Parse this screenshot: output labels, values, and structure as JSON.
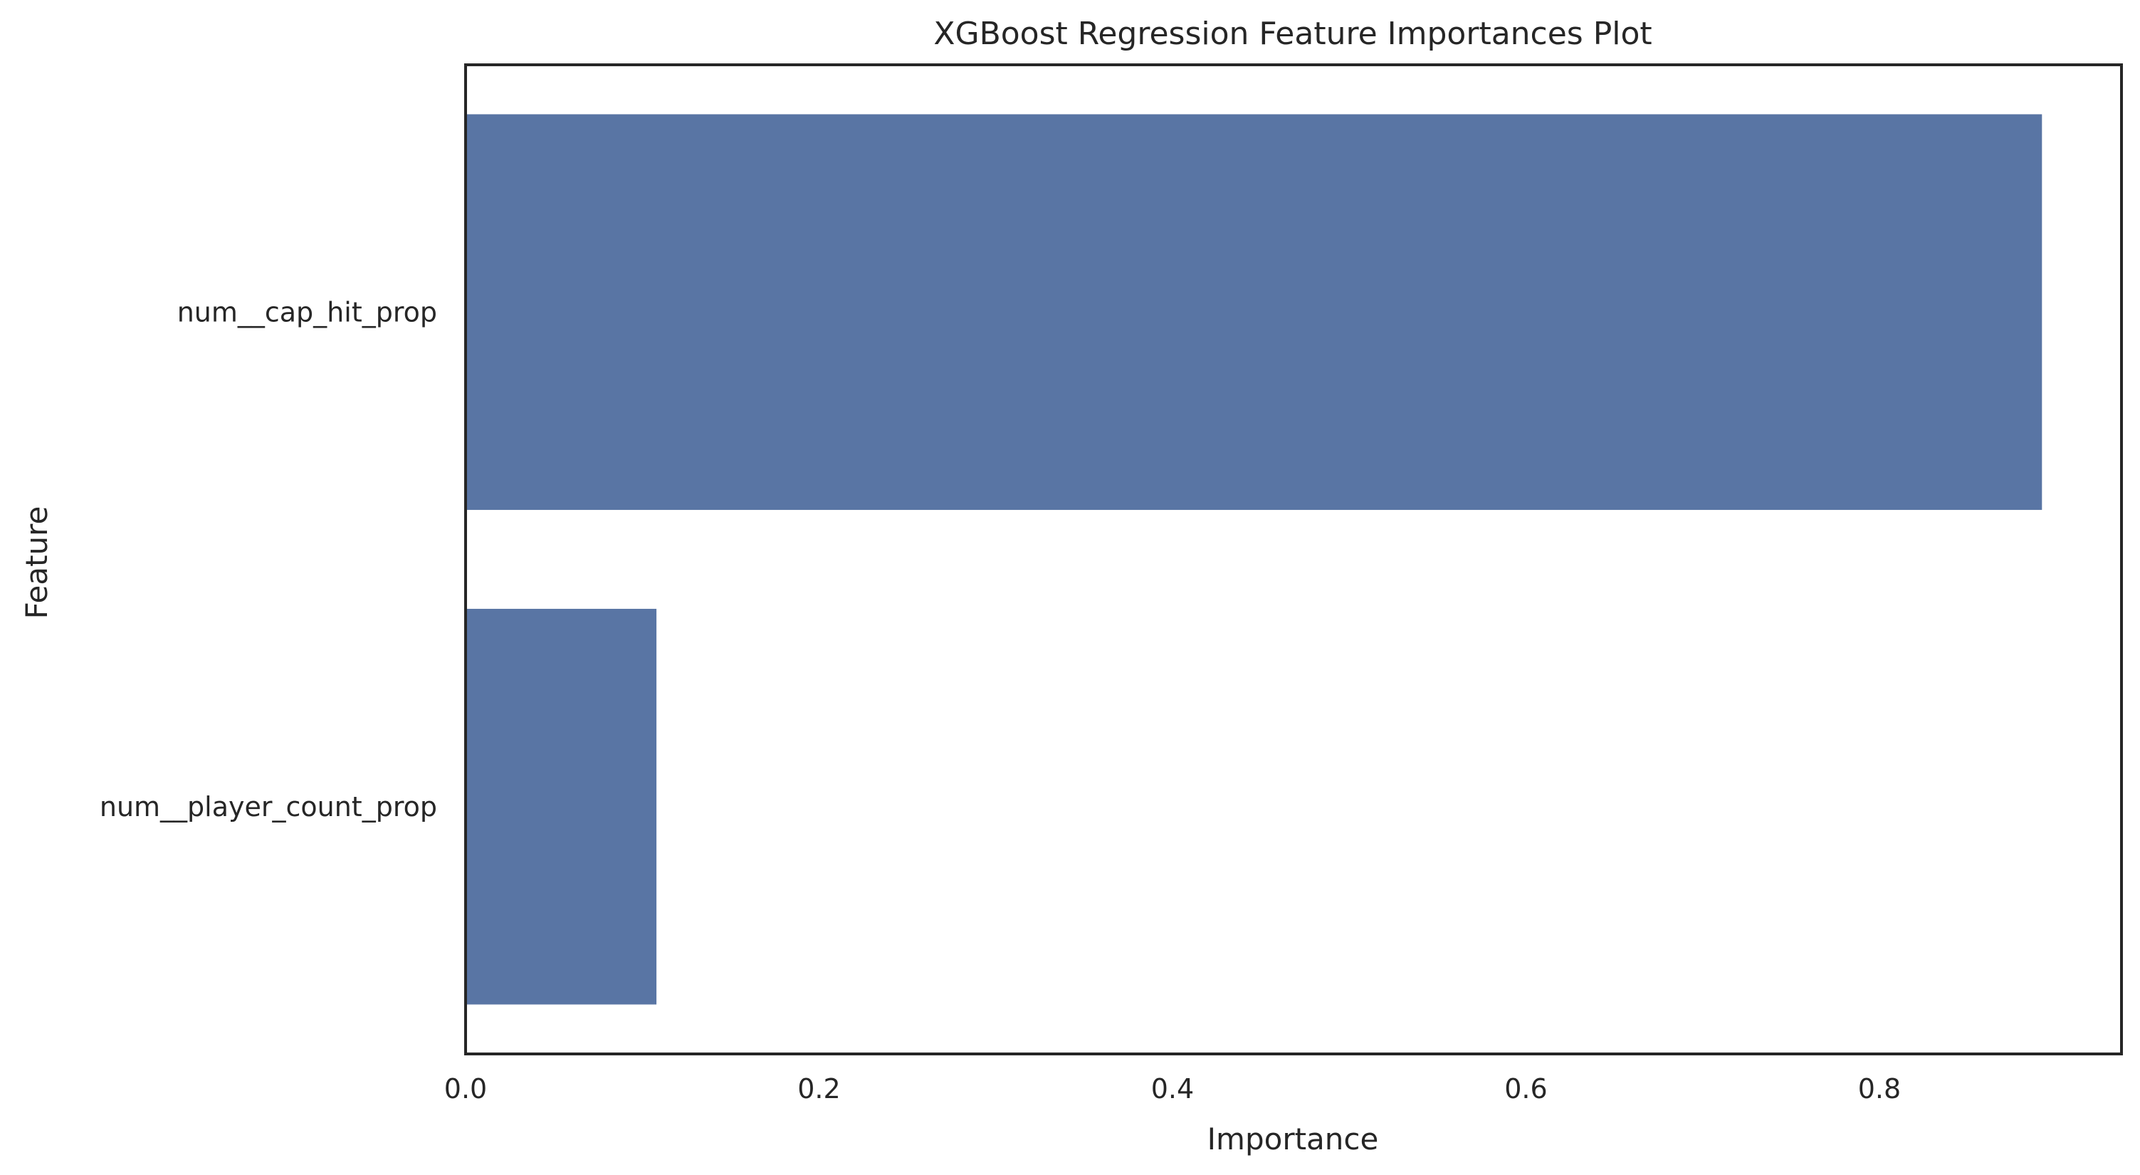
{
  "chart_data": {
    "type": "bar",
    "orientation": "horizontal",
    "title": "XGBoost Regression Feature Importances Plot",
    "xlabel": "Importance",
    "ylabel": "Feature",
    "categories": [
      "num__cap_hit_prop",
      "num__player_count_prop"
    ],
    "values": [
      0.892,
      0.108
    ],
    "xlim": [
      0.0,
      0.937
    ],
    "xticks": [
      0.0,
      0.2,
      0.4,
      0.6,
      0.8
    ],
    "xtick_labels": [
      "0.0",
      "0.2",
      "0.4",
      "0.6",
      "0.8"
    ],
    "grid": false,
    "bar_color": "#5975a4",
    "axes_color": "#262626"
  }
}
